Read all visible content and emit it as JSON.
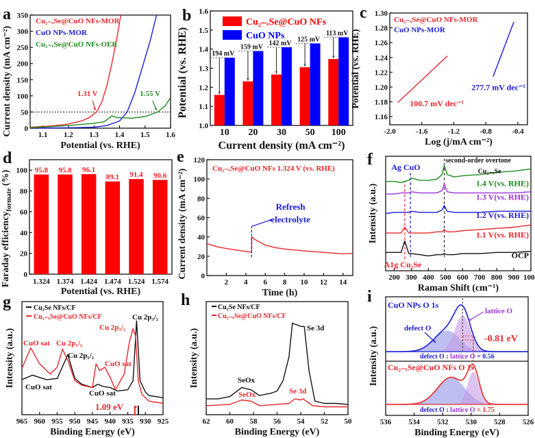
{
  "chart_data": [
    {
      "panel": "a",
      "type": "line",
      "xlabel": "Potential (vs. RHE)",
      "ylabel": "Current density (mA cm⁻²)",
      "xlim": [
        1.05,
        1.6
      ],
      "ylim": [
        0,
        350
      ],
      "xticks": [
        "1.1",
        "1.2",
        "1.3",
        "1.4",
        "1.5",
        "1.6"
      ],
      "yticks": [
        "0",
        "50",
        "100",
        "150",
        "200",
        "250",
        "300",
        "350"
      ],
      "reference_line": 50,
      "series": [
        {
          "name": "Cu₂₋ₓSe@CuO NFs-MOR",
          "color": "#e8262a",
          "x": [
            1.05,
            1.1,
            1.15,
            1.2,
            1.25,
            1.28,
            1.31,
            1.33,
            1.35,
            1.37,
            1.39,
            1.405
          ],
          "y": [
            3,
            5,
            8,
            13,
            22,
            32,
            50,
            80,
            130,
            200,
            280,
            350
          ]
        },
        {
          "name": "CuO NPs-MOR",
          "color": "#1a1ad6",
          "x": [
            1.05,
            1.2,
            1.3,
            1.35,
            1.4,
            1.43,
            1.46,
            1.49,
            1.52,
            1.545
          ],
          "y": [
            0,
            1,
            3,
            8,
            22,
            50,
            110,
            190,
            270,
            350
          ]
        },
        {
          "name": "Cu₂₋ₓSe@CuO NFs-OER",
          "color": "#1f8a1f",
          "x": [
            1.05,
            1.2,
            1.3,
            1.34,
            1.37,
            1.39,
            1.45,
            1.5,
            1.55,
            1.58,
            1.6
          ],
          "y": [
            1,
            8,
            15,
            20,
            38,
            33,
            31,
            36,
            50,
            70,
            95
          ]
        }
      ],
      "annotations": [
        "1.31 V",
        "1.55 V"
      ]
    },
    {
      "panel": "b",
      "type": "bar",
      "xlabel": "Current density (mA cm⁻²)",
      "ylabel": "Potential (vs. RHE)",
      "ylim": [
        1.0,
        1.6
      ],
      "yticks": [
        "1.0",
        "1.1",
        "1.2",
        "1.3",
        "1.4",
        "1.5",
        "1.6"
      ],
      "categories": [
        "10",
        "20",
        "30",
        "50",
        "100"
      ],
      "series": [
        {
          "name": "Cu₂₋ₓSe@CuO NFs",
          "color": "#ff0000",
          "values": [
            1.16,
            1.231,
            1.267,
            1.305,
            1.348
          ]
        },
        {
          "name": "CuO NPs",
          "color": "#0000ff",
          "values": [
            1.355,
            1.39,
            1.41,
            1.43,
            1.462
          ]
        }
      ],
      "annotations": [
        "194 mV",
        "159 mV",
        "142 mV",
        "125 mV",
        "113 mV"
      ]
    },
    {
      "panel": "c",
      "type": "line",
      "xlabel": "Log (j/mA cm⁻²)",
      "ylabel": "Potential (vs. RHE)",
      "xlim": [
        -2.0,
        -0.28
      ],
      "ylim": [
        1.149,
        1.3
      ],
      "xticks": [
        "-2.0",
        "-1.6",
        "-1.2",
        "-0.8",
        "-0.4"
      ],
      "yticks": [
        "1.16",
        "1.18",
        "1.20",
        "1.22",
        "1.24",
        "1.26",
        "1.28",
        "1.30"
      ],
      "series": [
        {
          "name": "Cu₂₋ₓSe@CuO NFs-MOR",
          "color": "#e8262a",
          "x": [
            -1.9,
            -1.28
          ],
          "y": [
            1.179,
            1.242
          ]
        },
        {
          "name": "CuO NPs-MOR",
          "color": "#1a1ad6",
          "x": [
            -0.71,
            -0.45
          ],
          "y": [
            1.214,
            1.288
          ]
        }
      ],
      "annotations": [
        "100.7 mV dec⁻¹",
        "277.7 mV dec⁻¹"
      ]
    },
    {
      "panel": "d",
      "type": "bar",
      "xlabel": "Potential (vs. RHE)",
      "ylabel": "Faraday efficiency",
      "ylabel_sub": "formate",
      "ylabel_unit": " (%)",
      "ylim": [
        0,
        110
      ],
      "yticks": [
        "0",
        "20",
        "40",
        "60",
        "80",
        "100"
      ],
      "categories": [
        "1.324",
        "1.374",
        "1.424",
        "1.474",
        "1.524",
        "1.574"
      ],
      "series": [
        {
          "name": "Faraday efficiency",
          "color": "#ff0000",
          "values": [
            95.8,
            95.8,
            96.1,
            89.1,
            91.4,
            90.6
          ]
        }
      ],
      "annotations": [
        "95.8",
        "95.8",
        "96.1",
        "89.1",
        "91.4",
        "90.6"
      ]
    },
    {
      "panel": "e",
      "type": "line",
      "xlabel": "Time  (h)",
      "ylabel": "Current density (mA cm⁻²)",
      "xlim": [
        0,
        15
      ],
      "ylim": [
        0,
        120
      ],
      "xticks": [
        "2",
        "4",
        "6",
        "8",
        "10",
        "12",
        "14"
      ],
      "yticks": [
        "0",
        "20",
        "40",
        "60",
        "80",
        "100",
        "120"
      ],
      "title": "Cu₂₋ₓSe@CuO NFs  1.324 V (vs. RHE)",
      "refresh_time": 4.6,
      "series": [
        {
          "name": "Cu₂₋ₓSe@CuO NFs",
          "color": "#e8262a",
          "x": [
            0,
            0.5,
            1,
            2,
            3,
            4,
            4.6,
            4.62,
            5,
            6,
            7,
            8,
            10,
            12,
            13,
            14,
            15
          ],
          "y": [
            33,
            31.5,
            30,
            28,
            26.5,
            25,
            24,
            40,
            37,
            31.5,
            29,
            27.5,
            25.5,
            24,
            23.2,
            22.5,
            23
          ]
        }
      ],
      "annotations": [
        "Refresh",
        "electrolyte"
      ]
    },
    {
      "panel": "f",
      "type": "line",
      "xlabel": "Raman Shift (cm⁻¹)",
      "ylabel": "Intensity (a.u.)",
      "xlim": [
        150,
        1000
      ],
      "ylim": [
        0,
        100
      ],
      "xticks": [
        "200",
        "300",
        "400",
        "500",
        "600",
        "700",
        "800",
        "900",
        "1000"
      ],
      "x": [
        150,
        200,
        240,
        262,
        285,
        300,
        350,
        400,
        450,
        480,
        493,
        510,
        550,
        600,
        700,
        800,
        900,
        1000
      ],
      "series": [
        {
          "name": "OCP",
          "color": "#111111",
          "y": [
            16,
            16,
            16,
            26,
            15,
            15,
            14,
            13,
            14,
            14,
            15,
            14,
            14,
            15,
            15,
            16,
            16,
            17
          ]
        },
        {
          "name": "1.1 V(vs. RHE)",
          "color": "#e8262a",
          "y": [
            33,
            33,
            33,
            38,
            33,
            33,
            33,
            33,
            34,
            34,
            36,
            34,
            34,
            35,
            36,
            37,
            38,
            40
          ]
        },
        {
          "name": "1.2 V(vs. RHE)",
          "color": "#1a1ad6",
          "y": [
            50,
            51,
            51,
            51,
            51,
            52,
            51,
            51,
            51,
            53,
            57,
            52,
            51,
            51,
            51,
            52,
            52,
            52
          ]
        },
        {
          "name": "1.3 V(vs. RHE)",
          "color": "#9b30d9",
          "y": [
            67,
            67,
            68,
            68,
            68,
            69,
            68,
            68,
            68,
            70,
            76,
            69,
            68,
            68,
            68,
            68,
            68,
            69
          ]
        },
        {
          "name": "1.4 V(vs. RHE)",
          "color": "#1f8a1f",
          "y": [
            78,
            78,
            77,
            78,
            79,
            81,
            79,
            79,
            80,
            84,
            92,
            84,
            82,
            83,
            84,
            86,
            87,
            89
          ]
        }
      ],
      "marker_lines": [
        262,
        295,
        493
      ],
      "annotations": [
        "second-order overtone",
        "Ag CuO",
        "Cu₂₋ₓSe",
        "A1g Cu₂Se"
      ]
    },
    {
      "panel": "g",
      "type": "line",
      "xlabel": "Binding Energy (eV)",
      "ylabel": "Intensity (a.u.)",
      "xlim": [
        965,
        925
      ],
      "ylim": [
        0,
        100
      ],
      "xticks": [
        "965",
        "960",
        "955",
        "950",
        "945",
        "940",
        "935",
        "930",
        "925"
      ],
      "series": [
        {
          "name": "Cu₂Se NFs/CF",
          "color": "#111111",
          "x": [
            965,
            962,
            958,
            955,
            952,
            950,
            948,
            945,
            943.5,
            942,
            940,
            938,
            935,
            933.5,
            932.5,
            931.5,
            930,
            929,
            925
          ],
          "y": [
            31,
            35,
            31,
            32,
            53,
            32,
            27,
            24,
            27,
            25,
            24,
            21,
            22,
            30,
            83,
            30,
            20,
            17,
            15
          ]
        },
        {
          "name": "Cu₂₋ₓSe@CuO NFs/CF",
          "color": "#e8262a",
          "x": [
            965,
            962.5,
            960,
            957,
            955,
            953.5,
            952,
            950,
            948,
            945,
            944,
            943,
            941.5,
            940,
            938.5,
            936,
            934.5,
            933.5,
            932.8,
            932,
            931,
            929,
            925
          ],
          "y": [
            41,
            59,
            45,
            36,
            42,
            58,
            48,
            30,
            26,
            24,
            45,
            39,
            42,
            33,
            22,
            36,
            65,
            76,
            70,
            30,
            18,
            12,
            10
          ]
        }
      ],
      "marker_lines": [
        933.0,
        932.0
      ],
      "annotations": [
        "Cu 2p₃/₂",
        "Cu 2p₃/₂",
        "CuO sat",
        "Cu 2p₁/₂",
        "Cu 2p₁/₂",
        "CuO sat",
        "CuO sat",
        "CuO sat",
        "1.09 eV"
      ]
    },
    {
      "panel": "h",
      "type": "line",
      "xlabel": "Binding Energy (eV)",
      "ylabel": "Intensity (a.u.)",
      "xlim": [
        62,
        50
      ],
      "ylim": [
        0,
        100
      ],
      "xticks": [
        "62",
        "60",
        "58",
        "56",
        "54",
        "52",
        "50"
      ],
      "series": [
        {
          "name": "Cu₂Se NFs/CF",
          "color": "#111111",
          "x": [
            62,
            61,
            60,
            59,
            58.2,
            57.5,
            56.5,
            56,
            55.5,
            55,
            54.7,
            54.5,
            54.2,
            54,
            53.7,
            53.3,
            52.8,
            52,
            51,
            50
          ],
          "y": [
            14,
            14,
            16,
            24,
            22,
            17,
            19,
            21,
            30,
            51,
            81,
            80,
            79,
            78,
            78,
            39,
            12,
            10,
            10,
            9
          ]
        },
        {
          "name": "Cu₂₋ₓSe@CuO NFs/CF",
          "color": "#e8262a",
          "x": [
            62,
            60,
            59,
            58.2,
            57.5,
            56,
            55,
            54.5,
            54,
            53.8,
            53,
            52,
            50
          ],
          "y": [
            8,
            9,
            13,
            12,
            8,
            9,
            10,
            14,
            13,
            14,
            8,
            7,
            7
          ]
        }
      ],
      "annotations": [
        "Se 3d",
        "SeOx",
        "SeOx",
        "Se 3d"
      ]
    },
    {
      "panel": "i",
      "type": "area",
      "xlabel": "Binding Energy (eV)",
      "ylabel": "Intensity (a.u.)",
      "xlim": [
        536,
        526
      ],
      "ylim": [
        0,
        1
      ],
      "xticks": [
        "536",
        "534",
        "532",
        "530",
        "528",
        "526"
      ],
      "subplots": [
        {
          "title": "CuO NPs O 1s",
          "color": "#1a1ad6",
          "ratio_value": " = 0.56",
          "components": [
            {
              "name": "defect O",
              "center": 531.7,
              "height": 0.42,
              "width": 0.9,
              "color": "#8f95e6"
            },
            {
              "name": "lattice O",
              "center": 530.6,
              "height": 0.72,
              "width": 0.55,
              "color": "#c79be6"
            }
          ]
        },
        {
          "title": "Cu₂₋ₓSe@CuO NFs O 1s",
          "color": "#e8262a",
          "ratio_value": " = 1.75",
          "components": [
            {
              "name": "defect O",
              "center": 531.4,
              "height": 0.6,
              "width": 0.95,
              "color": "#8f95e6"
            },
            {
              "name": "lattice O",
              "center": 529.85,
              "height": 0.72,
              "width": 0.4,
              "color": "#c79be6"
            }
          ]
        }
      ],
      "ratio_label": [
        "defect O",
        " : ",
        "lattice O"
      ],
      "annotations": [
        "defect O",
        "lattice O",
        "-0.81 eV"
      ]
    }
  ]
}
